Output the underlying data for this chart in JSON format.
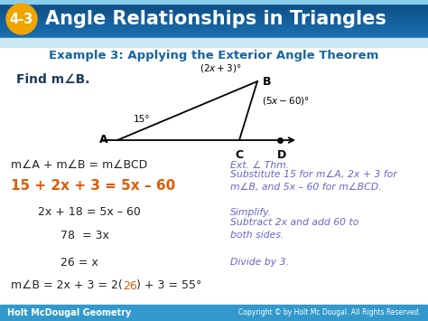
{
  "title_number": "4-3",
  "title_text": "Angle Relationships in Triangles",
  "circle_color": "#f0a500",
  "subtitle": "Example 3: Applying the Exterior Angle Theorem",
  "subtitle_color": "#1565a0",
  "find_text": "Find m∠B.",
  "line1_left": "m∠A + m∠B = m∠BCD",
  "line1_right": "Ext. ∠ Thm.",
  "line2_left": "15 + 2x + 3 = 5x – 60",
  "line2_right": "Substitute 15 for m∠A, 2x + 3 for\nm∠B, and 5x – 60 for m∠BCD.",
  "line3_left": "2x + 18 = 5x – 60",
  "line3_right": "Simplify.",
  "line4_left": "78  = 3x",
  "line4_right": "Subtract 2x and add 60 to\nboth sides.",
  "line5_left": "26 = x",
  "line5_right": "Divide by 3.",
  "line6_pre": "m∠B = 2x + 3 = 2(",
  "line6_orange": "26",
  "line6_post": ") + 3 = 55°",
  "footer_left": "Holt McDougal Geometry",
  "footer_right": "Copyright © by Holt Mc Dougal. All Rights Reserved.",
  "orange_color": "#e05a00",
  "blue_comment_color": "#6666cc",
  "dark_blue_text": "#1a3a5c",
  "black_text": "#222222",
  "header_dark": "#0d5a8c",
  "header_mid": "#1a7abf",
  "header_light": "#5aaad0",
  "footer_bg": "#3399cc",
  "bg_color": "#ffffff",
  "subheader_bg": "#cce8f5"
}
